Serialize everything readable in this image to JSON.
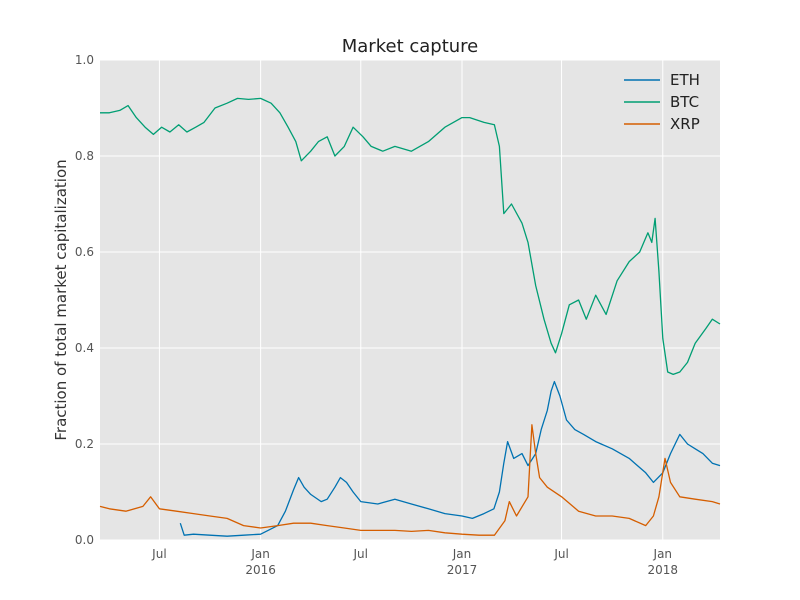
{
  "chart_data": {
    "type": "line",
    "title": "Market capture",
    "ylabel": "Fraction of total market capitalization",
    "xlabel": "",
    "xlim": [
      "2015-03-15",
      "2018-04-15"
    ],
    "ylim": [
      0.0,
      1.0
    ],
    "grid": true,
    "legend_position": "top-right",
    "y_ticks": [
      "0.0",
      "0.2",
      "0.4",
      "0.6",
      "0.8",
      "1.0"
    ],
    "x_ticks": [
      {
        "date": "2015-07-01",
        "label": "Jul",
        "year": ""
      },
      {
        "date": "2016-01-01",
        "label": "Jan",
        "year": "2016"
      },
      {
        "date": "2016-07-01",
        "label": "Jul",
        "year": ""
      },
      {
        "date": "2017-01-01",
        "label": "Jan",
        "year": "2017"
      },
      {
        "date": "2017-07-01",
        "label": "Jul",
        "year": ""
      },
      {
        "date": "2018-01-01",
        "label": "Jan",
        "year": "2018"
      }
    ],
    "colors": {
      "ETH": "#0072B2",
      "BTC": "#009E73",
      "XRP": "#D55E00",
      "plot_bg": "#E5E5E5",
      "grid": "#ffffff"
    },
    "series": [
      {
        "name": "ETH",
        "color": "#0072B2",
        "points": [
          [
            "2015-08-08",
            0.035
          ],
          [
            "2015-08-15",
            0.01
          ],
          [
            "2015-09-01",
            0.012
          ],
          [
            "2015-10-01",
            0.01
          ],
          [
            "2015-11-01",
            0.008
          ],
          [
            "2015-12-01",
            0.01
          ],
          [
            "2016-01-01",
            0.012
          ],
          [
            "2016-02-01",
            0.03
          ],
          [
            "2016-02-15",
            0.06
          ],
          [
            "2016-03-01",
            0.105
          ],
          [
            "2016-03-10",
            0.13
          ],
          [
            "2016-03-20",
            0.11
          ],
          [
            "2016-04-01",
            0.095
          ],
          [
            "2016-04-20",
            0.08
          ],
          [
            "2016-05-01",
            0.085
          ],
          [
            "2016-05-15",
            0.11
          ],
          [
            "2016-05-25",
            0.13
          ],
          [
            "2016-06-05",
            0.12
          ],
          [
            "2016-06-17",
            0.1
          ],
          [
            "2016-07-01",
            0.08
          ],
          [
            "2016-08-01",
            0.075
          ],
          [
            "2016-09-01",
            0.085
          ],
          [
            "2016-10-01",
            0.075
          ],
          [
            "2016-11-01",
            0.065
          ],
          [
            "2016-12-01",
            0.055
          ],
          [
            "2017-01-01",
            0.05
          ],
          [
            "2017-01-20",
            0.045
          ],
          [
            "2017-02-10",
            0.055
          ],
          [
            "2017-02-28",
            0.065
          ],
          [
            "2017-03-10",
            0.1
          ],
          [
            "2017-03-18",
            0.16
          ],
          [
            "2017-03-25",
            0.205
          ],
          [
            "2017-04-05",
            0.17
          ],
          [
            "2017-04-20",
            0.18
          ],
          [
            "2017-05-01",
            0.155
          ],
          [
            "2017-05-15",
            0.18
          ],
          [
            "2017-05-25",
            0.23
          ],
          [
            "2017-06-05",
            0.27
          ],
          [
            "2017-06-12",
            0.31
          ],
          [
            "2017-06-18",
            0.33
          ],
          [
            "2017-06-28",
            0.3
          ],
          [
            "2017-07-10",
            0.25
          ],
          [
            "2017-07-25",
            0.23
          ],
          [
            "2017-08-10",
            0.22
          ],
          [
            "2017-09-01",
            0.205
          ],
          [
            "2017-10-01",
            0.19
          ],
          [
            "2017-11-01",
            0.17
          ],
          [
            "2017-12-01",
            0.14
          ],
          [
            "2017-12-15",
            0.12
          ],
          [
            "2018-01-01",
            0.14
          ],
          [
            "2018-01-15",
            0.18
          ],
          [
            "2018-02-01",
            0.22
          ],
          [
            "2018-02-15",
            0.2
          ],
          [
            "2018-03-01",
            0.19
          ],
          [
            "2018-03-15",
            0.18
          ],
          [
            "2018-04-01",
            0.16
          ],
          [
            "2018-04-15",
            0.155
          ]
        ]
      },
      {
        "name": "BTC",
        "color": "#009E73",
        "points": [
          [
            "2015-03-15",
            0.89
          ],
          [
            "2015-04-01",
            0.89
          ],
          [
            "2015-04-20",
            0.895
          ],
          [
            "2015-05-05",
            0.905
          ],
          [
            "2015-05-20",
            0.88
          ],
          [
            "2015-06-05",
            0.86
          ],
          [
            "2015-06-20",
            0.845
          ],
          [
            "2015-07-05",
            0.86
          ],
          [
            "2015-07-20",
            0.85
          ],
          [
            "2015-08-05",
            0.865
          ],
          [
            "2015-08-20",
            0.85
          ],
          [
            "2015-09-05",
            0.86
          ],
          [
            "2015-09-20",
            0.87
          ],
          [
            "2015-10-10",
            0.9
          ],
          [
            "2015-11-01",
            0.91
          ],
          [
            "2015-11-20",
            0.92
          ],
          [
            "2015-12-10",
            0.918
          ],
          [
            "2016-01-01",
            0.92
          ],
          [
            "2016-01-20",
            0.91
          ],
          [
            "2016-02-05",
            0.89
          ],
          [
            "2016-02-20",
            0.86
          ],
          [
            "2016-03-05",
            0.83
          ],
          [
            "2016-03-15",
            0.79
          ],
          [
            "2016-04-01",
            0.81
          ],
          [
            "2016-04-15",
            0.83
          ],
          [
            "2016-05-01",
            0.84
          ],
          [
            "2016-05-15",
            0.8
          ],
          [
            "2016-06-01",
            0.82
          ],
          [
            "2016-06-17",
            0.86
          ],
          [
            "2016-07-05",
            0.84
          ],
          [
            "2016-07-20",
            0.82
          ],
          [
            "2016-08-10",
            0.81
          ],
          [
            "2016-09-01",
            0.82
          ],
          [
            "2016-10-01",
            0.81
          ],
          [
            "2016-11-01",
            0.83
          ],
          [
            "2016-12-01",
            0.86
          ],
          [
            "2017-01-01",
            0.88
          ],
          [
            "2017-01-15",
            0.88
          ],
          [
            "2017-02-10",
            0.87
          ],
          [
            "2017-03-01",
            0.865
          ],
          [
            "2017-03-10",
            0.82
          ],
          [
            "2017-03-18",
            0.68
          ],
          [
            "2017-04-01",
            0.7
          ],
          [
            "2017-04-20",
            0.66
          ],
          [
            "2017-05-01",
            0.62
          ],
          [
            "2017-05-15",
            0.53
          ],
          [
            "2017-05-30",
            0.46
          ],
          [
            "2017-06-12",
            0.41
          ],
          [
            "2017-06-20",
            0.39
          ],
          [
            "2017-07-01",
            0.43
          ],
          [
            "2017-07-15",
            0.49
          ],
          [
            "2017-08-01",
            0.5
          ],
          [
            "2017-08-15",
            0.46
          ],
          [
            "2017-09-01",
            0.51
          ],
          [
            "2017-09-20",
            0.47
          ],
          [
            "2017-10-10",
            0.54
          ],
          [
            "2017-11-01",
            0.58
          ],
          [
            "2017-11-20",
            0.6
          ],
          [
            "2017-12-05",
            0.64
          ],
          [
            "2017-12-12",
            0.62
          ],
          [
            "2017-12-18",
            0.67
          ],
          [
            "2017-12-25",
            0.56
          ],
          [
            "2018-01-01",
            0.42
          ],
          [
            "2018-01-10",
            0.35
          ],
          [
            "2018-01-20",
            0.345
          ],
          [
            "2018-02-01",
            0.35
          ],
          [
            "2018-02-15",
            0.37
          ],
          [
            "2018-03-01",
            0.41
          ],
          [
            "2018-03-20",
            0.44
          ],
          [
            "2018-04-01",
            0.46
          ],
          [
            "2018-04-15",
            0.45
          ]
        ]
      },
      {
        "name": "XRP",
        "color": "#D55E00",
        "points": [
          [
            "2015-03-15",
            0.07
          ],
          [
            "2015-04-01",
            0.065
          ],
          [
            "2015-05-01",
            0.06
          ],
          [
            "2015-06-01",
            0.07
          ],
          [
            "2015-06-15",
            0.09
          ],
          [
            "2015-07-01",
            0.065
          ],
          [
            "2015-08-01",
            0.06
          ],
          [
            "2015-09-01",
            0.055
          ],
          [
            "2015-10-01",
            0.05
          ],
          [
            "2015-11-01",
            0.045
          ],
          [
            "2015-12-01",
            0.03
          ],
          [
            "2016-01-01",
            0.025
          ],
          [
            "2016-02-01",
            0.03
          ],
          [
            "2016-03-01",
            0.035
          ],
          [
            "2016-04-01",
            0.035
          ],
          [
            "2016-05-01",
            0.03
          ],
          [
            "2016-06-01",
            0.025
          ],
          [
            "2016-07-01",
            0.02
          ],
          [
            "2016-08-01",
            0.02
          ],
          [
            "2016-09-01",
            0.02
          ],
          [
            "2016-10-01",
            0.018
          ],
          [
            "2016-11-01",
            0.02
          ],
          [
            "2016-12-01",
            0.015
          ],
          [
            "2017-01-01",
            0.012
          ],
          [
            "2017-02-01",
            0.01
          ],
          [
            "2017-03-01",
            0.01
          ],
          [
            "2017-03-20",
            0.04
          ],
          [
            "2017-03-28",
            0.08
          ],
          [
            "2017-04-10",
            0.05
          ],
          [
            "2017-05-01",
            0.09
          ],
          [
            "2017-05-08",
            0.24
          ],
          [
            "2017-05-15",
            0.18
          ],
          [
            "2017-05-22",
            0.13
          ],
          [
            "2017-06-05",
            0.11
          ],
          [
            "2017-07-01",
            0.09
          ],
          [
            "2017-08-01",
            0.06
          ],
          [
            "2017-09-01",
            0.05
          ],
          [
            "2017-10-01",
            0.05
          ],
          [
            "2017-11-01",
            0.045
          ],
          [
            "2017-12-01",
            0.03
          ],
          [
            "2017-12-15",
            0.05
          ],
          [
            "2017-12-25",
            0.09
          ],
          [
            "2018-01-05",
            0.17
          ],
          [
            "2018-01-15",
            0.12
          ],
          [
            "2018-02-01",
            0.09
          ],
          [
            "2018-03-01",
            0.085
          ],
          [
            "2018-04-01",
            0.08
          ],
          [
            "2018-04-15",
            0.075
          ]
        ]
      }
    ]
  }
}
